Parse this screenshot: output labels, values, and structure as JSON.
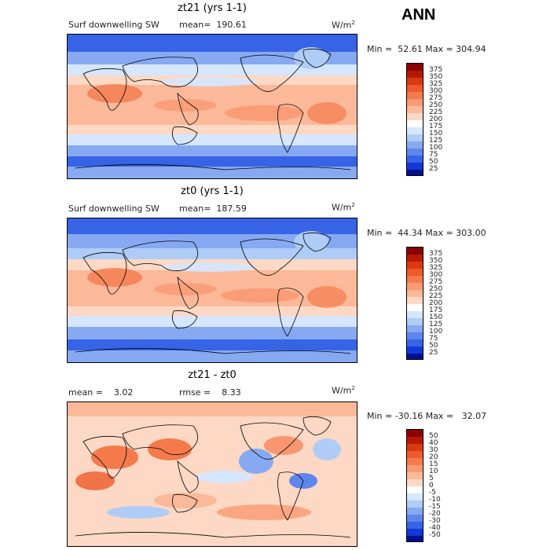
{
  "header": {
    "season": "ANN"
  },
  "panels": [
    {
      "title": "zt21 (yrs 1-1)",
      "variable": "Surf downwelling SW",
      "stat": "mean=  190.61",
      "units": "W/m",
      "units_exp": "2",
      "minmax": "Min =  52.61 Max = 304.94",
      "levels": [
        "375",
        "350",
        "325",
        "300",
        "275",
        "250",
        "225",
        "200",
        "175",
        "150",
        "125",
        "100",
        "75",
        "50",
        "25"
      ],
      "colors": [
        "#8b0000",
        "#b51a00",
        "#d93a10",
        "#ee5a2a",
        "#f47a4c",
        "#f99a72",
        "#fbb99a",
        "#fdd8c4",
        "#ffffff",
        "#d6e6ff",
        "#afccf7",
        "#86a9f2",
        "#5f86ec",
        "#3763e6",
        "#1238d6",
        "#00108f"
      ]
    },
    {
      "title": "zt0 (yrs 1-1)",
      "variable": "Surf downwelling SW",
      "stat": "mean=  187.59",
      "units": "W/m",
      "units_exp": "2",
      "minmax": "Min =  44.34 Max = 303.00",
      "levels": [
        "375",
        "350",
        "325",
        "300",
        "275",
        "250",
        "225",
        "200",
        "175",
        "150",
        "125",
        "100",
        "75",
        "50",
        "25"
      ],
      "colors": [
        "#8b0000",
        "#b51a00",
        "#d93a10",
        "#ee5a2a",
        "#f47a4c",
        "#f99a72",
        "#fbb99a",
        "#fdd8c4",
        "#ffffff",
        "#d6e6ff",
        "#afccf7",
        "#86a9f2",
        "#5f86ec",
        "#3763e6",
        "#1238d6",
        "#00108f"
      ]
    },
    {
      "title": "zt21 - zt0",
      "stat_left": "mean =    3.02",
      "stat_mid": "rmse =    8.33",
      "units": "W/m",
      "units_exp": "2",
      "minmax": "Min = -30.16 Max =   32.07",
      "levels": [
        "50",
        "40",
        "30",
        "20",
        "15",
        "10",
        "5",
        "0",
        "-5",
        "-10",
        "-15",
        "-20",
        "-30",
        "-40",
        "-50"
      ],
      "colors": [
        "#8b0000",
        "#b51a00",
        "#d93a10",
        "#ee5a2a",
        "#f47a4c",
        "#f99a72",
        "#fbb99a",
        "#fdd8c4",
        "#ffffff",
        "#d6e6ff",
        "#afccf7",
        "#86a9f2",
        "#5f86ec",
        "#3763e6",
        "#1238d6",
        "#00108f"
      ]
    }
  ]
}
